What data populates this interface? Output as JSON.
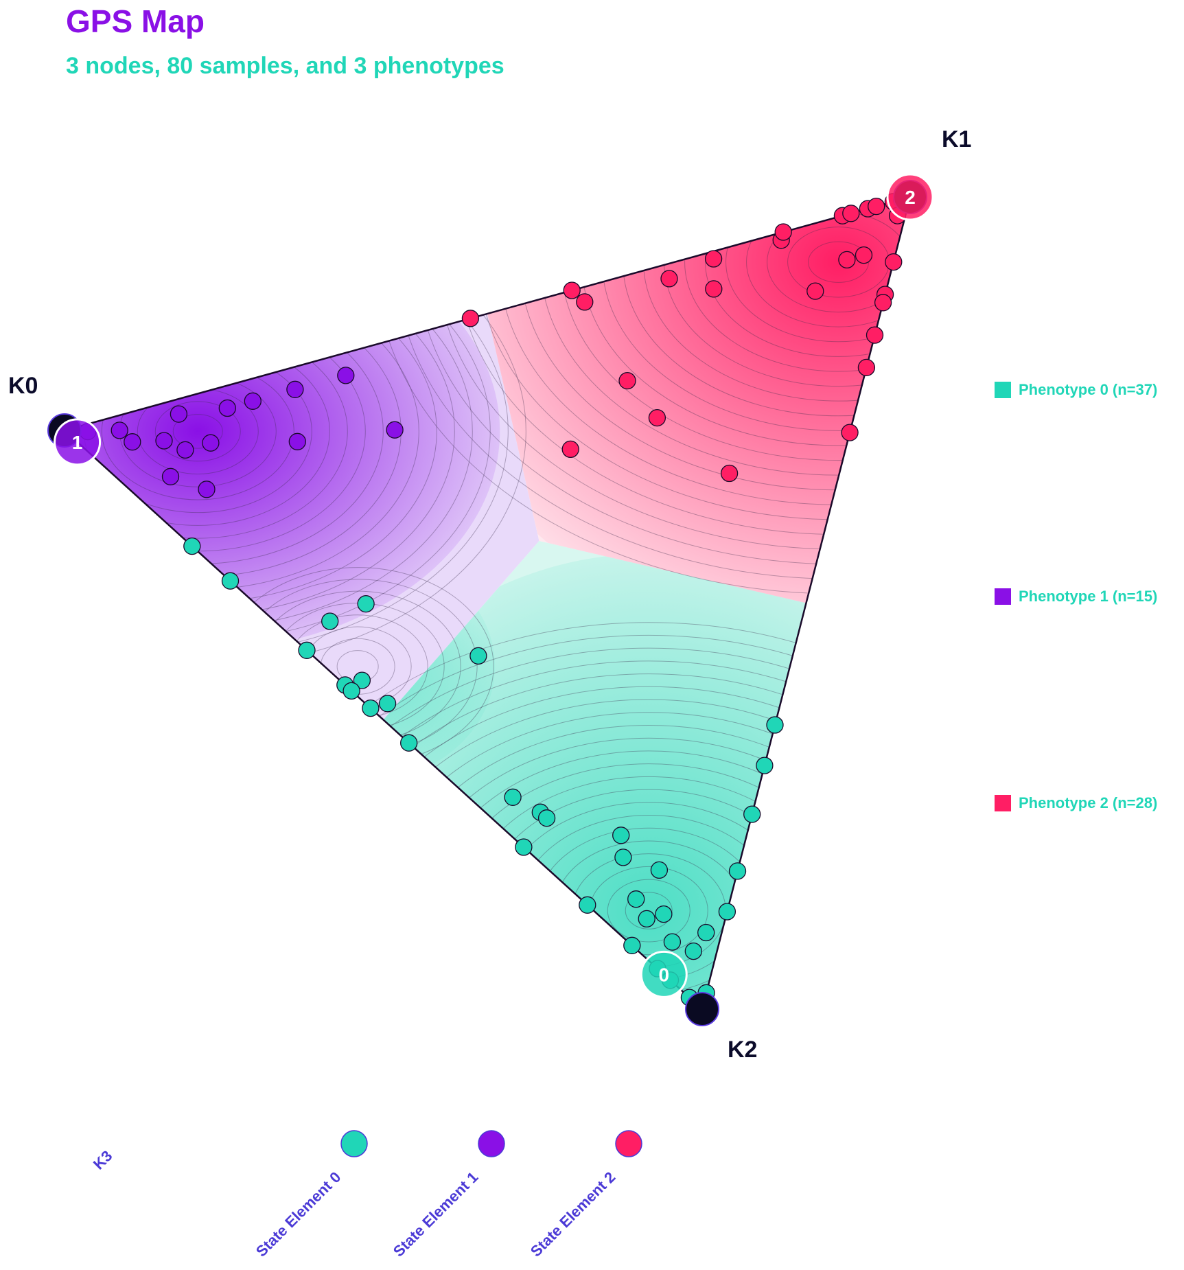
{
  "colors": {
    "phenotype_0": "#20d6b7",
    "phenotype_1": "#8a10e6",
    "phenotype_2": "#ff1e64",
    "title": "#8a10e6",
    "subtitle": "#20d6b7",
    "legend_text": "#20d6b7",
    "bottom_label": "#4b3ad6",
    "vertex_label": "#0b0b2a",
    "edge": "#1a0a2a"
  },
  "title": "GPS Map",
  "subtitle": "3 nodes, 80 samples, and 3 phenotypes",
  "chart_data": {
    "type": "scatter",
    "title": "GPS Map",
    "subtitle": "3 nodes, 80 samples, and 3 phenotypes",
    "grid": false,
    "legend_placement": "right",
    "vertices": [
      "K0",
      "K1",
      "K2"
    ],
    "legend": [
      {
        "label": "Phenotype 0 (n=37)",
        "color": "#20d6b7"
      },
      {
        "label": "Phenotype 1 (n=15)",
        "color": "#8a10e6"
      },
      {
        "label": "Phenotype 2 (n=28)",
        "color": "#ff1e64"
      }
    ],
    "nodes": [
      {
        "label": "1",
        "phenotype": 1,
        "weights": [
          0.98,
          0.0,
          0.02
        ]
      },
      {
        "label": "2",
        "phenotype": 2,
        "weights": [
          0.0,
          1.0,
          0.0
        ]
      },
      {
        "label": "0",
        "phenotype": 0,
        "weights": [
          0.06,
          0.0,
          0.94
        ]
      }
    ],
    "series": [
      {
        "name": "Phenotype 0",
        "phenotype": 0,
        "points": [
          [
            0.8,
            0,
            0.2
          ],
          [
            0.74,
            0,
            0.26
          ],
          [
            0.6,
            0.05,
            0.35
          ],
          [
            0.62,
            0,
            0.38
          ],
          [
            0.56,
            0,
            0.44
          ],
          [
            0.54,
            0.02,
            0.44
          ],
          [
            0.55,
            0,
            0.45
          ],
          [
            0.52,
            0,
            0.48
          ],
          [
            0.5,
            0.02,
            0.48
          ],
          [
            0.46,
            0,
            0.54
          ],
          [
            0.4,
            0.15,
            0.45
          ],
          [
            0.56,
            0.1,
            0.34
          ],
          [
            0.31,
            0.04,
            0.65
          ],
          [
            0.27,
            0.05,
            0.68
          ],
          [
            0.26,
            0.05,
            0.69
          ],
          [
            0.28,
            0,
            0.72
          ],
          [
            0.16,
            0.1,
            0.74
          ],
          [
            0.18,
            0,
            0.82
          ],
          [
            0.15,
            0.08,
            0.77
          ],
          [
            0.12,
            0.05,
            0.83
          ],
          [
            0.1,
            0.1,
            0.8
          ],
          [
            0.08,
            0.06,
            0.86
          ],
          [
            0.11,
            0,
            0.89
          ],
          [
            0.1,
            0.04,
            0.86
          ],
          [
            0.06,
            0.04,
            0.9
          ],
          [
            0.05,
            0,
            0.95
          ],
          [
            0.03,
            0.05,
            0.92
          ],
          [
            0,
            0.35,
            0.65
          ],
          [
            0,
            0.3,
            0.7
          ],
          [
            0,
            0.24,
            0.76
          ],
          [
            0,
            0.17,
            0.83
          ],
          [
            0,
            0.12,
            0.88
          ],
          [
            0.02,
            0.08,
            0.9
          ],
          [
            0,
            0.02,
            0.98
          ],
          [
            0,
            0.01,
            0.99
          ],
          [
            0.02,
            0,
            0.98
          ],
          [
            0.07,
            0,
            0.93
          ]
        ]
      },
      {
        "name": "Phenotype 1",
        "phenotype": 1,
        "points": [
          [
            0.97,
            0.02,
            0.01
          ],
          [
            0.93,
            0.05,
            0.02
          ],
          [
            0.91,
            0.05,
            0.04
          ],
          [
            0.87,
            0.08,
            0.05
          ],
          [
            0.86,
            0.12,
            0.02
          ],
          [
            0.84,
            0.09,
            0.07
          ],
          [
            0.8,
            0.17,
            0.03
          ],
          [
            0.77,
            0.2,
            0.03
          ],
          [
            0.81,
            0.12,
            0.07
          ],
          [
            0.7,
            0.2,
            0.1
          ],
          [
            0.72,
            0.25,
            0.03
          ],
          [
            0.66,
            0.31,
            0.03
          ],
          [
            0.58,
            0.3,
            0.12
          ],
          [
            0.8,
            0.07,
            0.13
          ],
          [
            0.85,
            0.05,
            0.1
          ]
        ]
      },
      {
        "name": "Phenotype 2",
        "phenotype": 2,
        "points": [
          [
            0.52,
            0.48,
            0
          ],
          [
            0.4,
            0.6,
            0
          ],
          [
            0.38,
            0.6,
            0.02
          ],
          [
            0.28,
            0.7,
            0.02
          ],
          [
            0.22,
            0.73,
            0.05
          ],
          [
            0.23,
            0.76,
            0.01
          ],
          [
            0.15,
            0.84,
            0.01
          ],
          [
            0.15,
            0.85,
            0
          ],
          [
            0.08,
            0.92,
            0
          ],
          [
            0.07,
            0.93,
            0
          ],
          [
            0.05,
            0.95,
            0
          ],
          [
            0.04,
            0.96,
            0
          ],
          [
            0.02,
            0.98,
            0
          ],
          [
            0.01,
            0.99,
            0
          ],
          [
            0.04,
            0.9,
            0.06
          ],
          [
            0.09,
            0.82,
            0.09
          ],
          [
            0.06,
            0.88,
            0.06
          ],
          [
            0,
            0.92,
            0.08
          ],
          [
            0,
            0.88,
            0.12
          ],
          [
            0,
            0.87,
            0.13
          ],
          [
            0,
            0.83,
            0.17
          ],
          [
            0,
            0.79,
            0.21
          ],
          [
            0,
            0.71,
            0.29
          ],
          [
            0.3,
            0.56,
            0.14
          ],
          [
            0.25,
            0.55,
            0.2
          ],
          [
            0.35,
            0.44,
            0.21
          ],
          [
            0.14,
            0.56,
            0.3
          ],
          [
            0.01,
            0.97,
            0.02
          ]
        ]
      }
    ]
  },
  "bottom_legend": {
    "label": "K3",
    "items": [
      {
        "label": "State Element 0",
        "color": "#20d6b7"
      },
      {
        "label": "State Element 1",
        "color": "#8a10e6"
      },
      {
        "label": "State Element 2",
        "color": "#ff1e64"
      }
    ]
  }
}
